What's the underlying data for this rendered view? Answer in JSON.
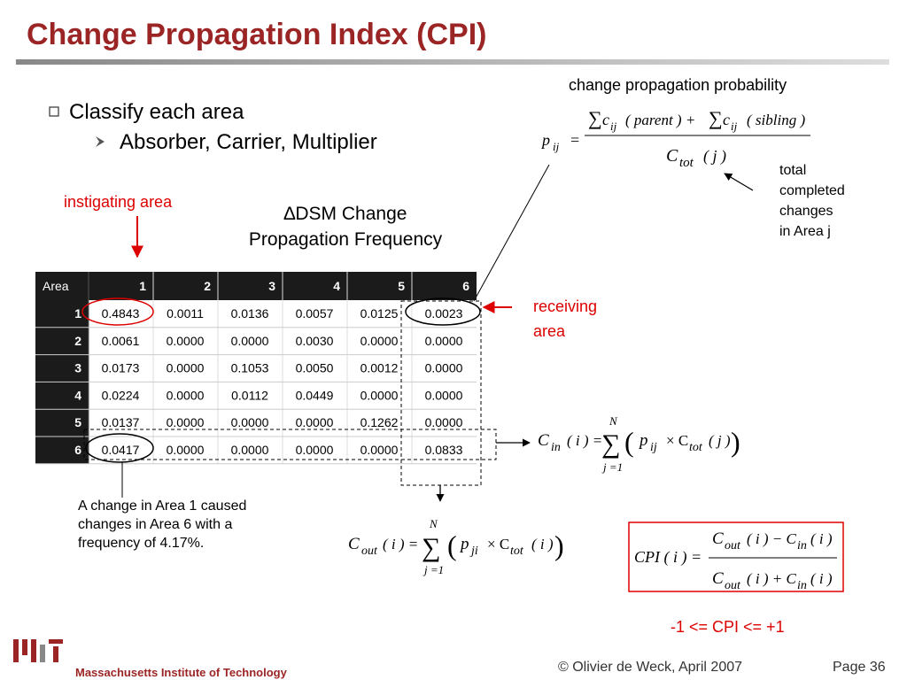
{
  "header": {
    "title": "Change Propagation Index (CPI)"
  },
  "bullets": {
    "main": "Classify each area",
    "sub": "Absorber, Carrier, Multiplier"
  },
  "labels": {
    "instigating": "instigating area",
    "dsm": [
      "∆DSM Change",
      "Propagation Frequency"
    ],
    "receiving": [
      "receiving",
      "area"
    ],
    "probability": "change propagation probability",
    "total": [
      "total",
      "completed",
      "changes",
      "in Area j"
    ],
    "note": [
      "A change in Area 1 caused",
      "changes in Area 6 with a",
      "frequency of 4.17%."
    ],
    "range": "-1 <= CPI <= +1"
  },
  "table": {
    "header": [
      "Area",
      "1",
      "2",
      "3",
      "4",
      "5",
      "6"
    ],
    "rows": [
      [
        "1",
        "0.4843",
        "0.0011",
        "0.0136",
        "0.0057",
        "0.0125",
        "0.0023"
      ],
      [
        "2",
        "0.0061",
        "0.0000",
        "0.0000",
        "0.0030",
        "0.0000",
        "0.0000"
      ],
      [
        "3",
        "0.0173",
        "0.0000",
        "0.1053",
        "0.0050",
        "0.0012",
        "0.0000"
      ],
      [
        "4",
        "0.0224",
        "0.0000",
        "0.0112",
        "0.0449",
        "0.0000",
        "0.0000"
      ],
      [
        "5",
        "0.0137",
        "0.0000",
        "0.0000",
        "0.0000",
        "0.1262",
        "0.0000"
      ],
      [
        "6",
        "0.0417",
        "0.0000",
        "0.0000",
        "0.0000",
        "0.0000",
        "0.0833"
      ]
    ]
  },
  "formulas": {
    "pij": [
      "p",
      "ij",
      "=",
      "∑",
      "c",
      "ij",
      "( parent ) +",
      "∑",
      "c",
      "ij",
      "( sibling )",
      "C",
      "tot",
      "( j )"
    ],
    "cin": [
      "C",
      "in",
      "( i ) =",
      "N",
      "∑",
      "j =1",
      "(",
      "p",
      "ij",
      "× C",
      "tot",
      "( j )",
      ")"
    ],
    "cout": [
      "C",
      "out",
      "( i ) =",
      "N",
      "∑",
      "j =1",
      "(",
      "p",
      "ji",
      "× C",
      "tot",
      "( i )",
      ")"
    ],
    "cpi": [
      "CPI ( i ) =",
      "C",
      "out",
      "( i ) − C",
      "in",
      "( i )",
      "C",
      "out",
      "( i ) + C",
      "in",
      "( i )"
    ]
  },
  "footer": {
    "institute": "Massachusetts Institute of Technology",
    "author": "© Olivier de Weck, April 2007",
    "page": "Page 36"
  }
}
